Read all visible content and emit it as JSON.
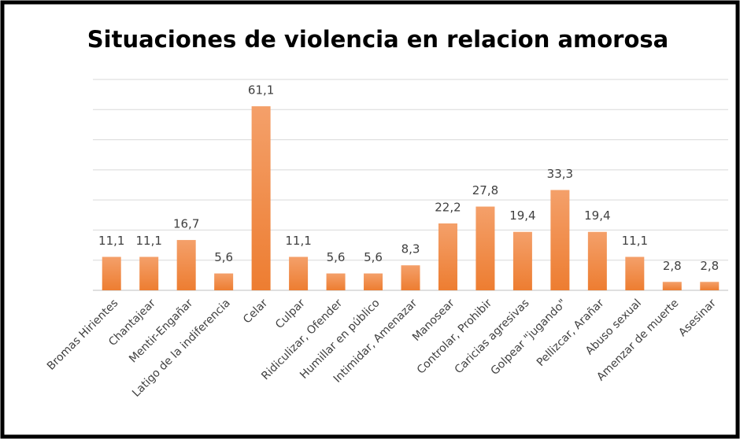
{
  "chart_data": {
    "type": "bar",
    "title": "Situaciones de violencia en relacion amorosa",
    "categories": [
      "Bromas Hirientes",
      "Chantajear",
      "Mentir-Engañar",
      "Latigo de la indiferencia",
      "Celar",
      "Culpar",
      "Ridiculizar, Ofender",
      "Humillar en público",
      "Intimidar, Amenazar",
      "Manosear",
      "Controlar, Prohibir",
      "Caricias agresivas",
      "Golpear \"jugando\"",
      "Pellizcar, Arañar",
      "Abuso sexual",
      "Amenzar de muerte",
      "Asesinar"
    ],
    "values": [
      11.1,
      11.1,
      16.7,
      5.6,
      61.1,
      11.1,
      5.6,
      5.6,
      8.3,
      22.2,
      27.8,
      19.4,
      33.3,
      19.4,
      11.1,
      2.8,
      2.8
    ],
    "value_labels": [
      "11,1",
      "11,1",
      "16,7",
      "5,6",
      "61,1",
      "11,1",
      "5,6",
      "5,6",
      "8,3",
      "22,2",
      "27,8",
      "19,4",
      "33,3",
      "19,4",
      "11,1",
      "2,8",
      "2,8"
    ],
    "color": "#ed7d31",
    "ylim": [
      0,
      70
    ],
    "yticks": [
      0,
      10,
      20,
      30,
      40,
      50,
      60,
      70
    ],
    "grid": true
  }
}
